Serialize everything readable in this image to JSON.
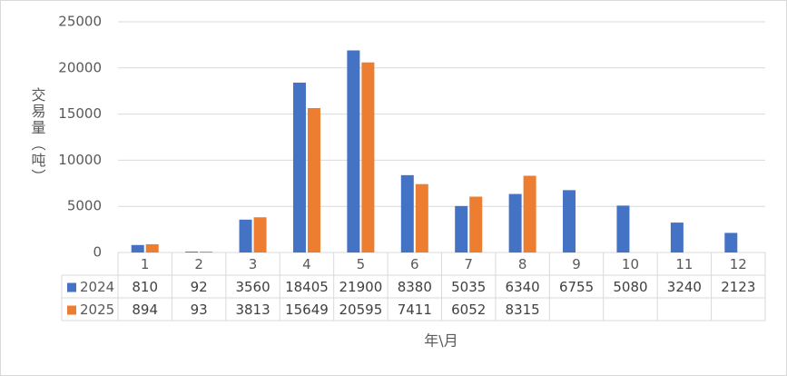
{
  "chart_data": {
    "type": "bar",
    "y_label": "交易量（吨）",
    "x_label": "年\\月",
    "categories": [
      "1",
      "2",
      "3",
      "4",
      "5",
      "6",
      "7",
      "8",
      "9",
      "10",
      "11",
      "12"
    ],
    "series": [
      {
        "name": "2024",
        "color": "#4472c4",
        "values": [
          810,
          92,
          3560,
          18405,
          21900,
          8380,
          5035,
          6340,
          6755,
          5080,
          3240,
          2123
        ]
      },
      {
        "name": "2025",
        "color": "#ed7d31",
        "values": [
          894,
          93,
          3813,
          15649,
          20595,
          7411,
          6052,
          8315,
          null,
          null,
          null,
          null
        ]
      }
    ],
    "ylim": [
      0,
      25000
    ],
    "yticks": [
      0,
      5000,
      10000,
      15000,
      20000,
      25000
    ],
    "grid": true
  }
}
